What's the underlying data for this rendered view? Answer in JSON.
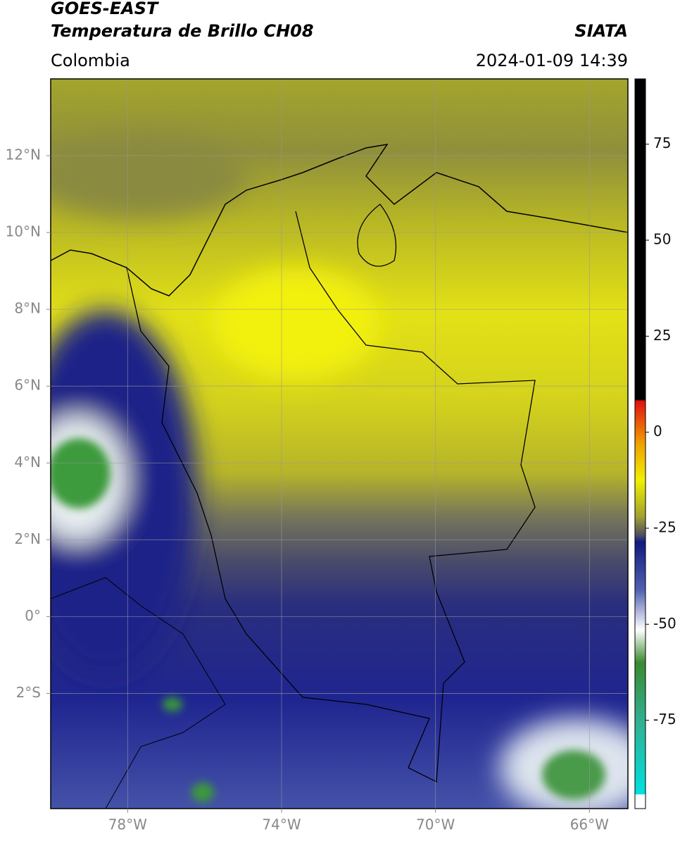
{
  "header": {
    "title": "GOES-EAST",
    "subtitle": "Temperatura de Brillo CH08",
    "source": "SIATA",
    "region": "Colombia",
    "datetime": "2024-01-09 14:39"
  },
  "map": {
    "lon_range": [
      -80,
      -65
    ],
    "lat_range": [
      -5,
      14
    ],
    "grid": true,
    "lat_ticks": [
      {
        "value": 12,
        "label": "12°N"
      },
      {
        "value": 10,
        "label": "10°N"
      },
      {
        "value": 8,
        "label": "8°N"
      },
      {
        "value": 6,
        "label": "6°N"
      },
      {
        "value": 4,
        "label": "4°N"
      },
      {
        "value": 2,
        "label": "2°N"
      },
      {
        "value": 0,
        "label": "0°"
      },
      {
        "value": -2,
        "label": "2°S"
      }
    ],
    "lon_ticks": [
      {
        "value": -78,
        "label": "78°W"
      },
      {
        "value": -74,
        "label": "74°W"
      },
      {
        "value": -70,
        "label": "70°W"
      },
      {
        "value": -66,
        "label": "66°W"
      }
    ]
  },
  "colorbar": {
    "range": [
      -98,
      92
    ],
    "ticks": [
      75,
      50,
      25,
      0,
      -25,
      -50,
      -75
    ]
  }
}
